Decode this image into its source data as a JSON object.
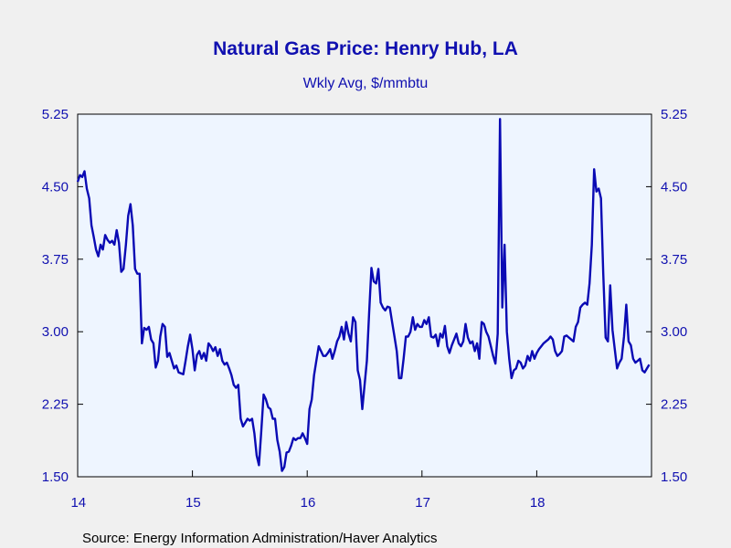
{
  "chart_data": {
    "type": "line",
    "title": "Natural Gas Price: Henry Hub, LA",
    "subtitle": "Wkly Avg, $/mmbtu",
    "source": "Source:  Energy Information Administration/Haver Analytics",
    "y_ticks": [
      "5.25",
      "4.50",
      "3.75",
      "3.00",
      "2.25",
      "1.50"
    ],
    "y_tick_values": [
      5.25,
      4.5,
      3.75,
      3.0,
      2.25,
      1.5
    ],
    "ylim": [
      1.5,
      5.25
    ],
    "x_tick_labels": [
      "14",
      "15",
      "16",
      "17",
      "18"
    ],
    "xlim": [
      2014.0,
      2019.0
    ],
    "grid": false,
    "colors": {
      "line": "#0a0ab4",
      "text": "#1010b0",
      "plot_bg": "#eef5ff",
      "page_bg": "#f0f0f0"
    },
    "series": [
      {
        "x": [
          2014.0,
          2014.02,
          2014.04,
          2014.06,
          2014.08,
          2014.1,
          2014.12,
          2014.14,
          2014.16,
          2014.18,
          2014.2,
          2014.22,
          2014.24,
          2014.26,
          2014.28,
          2014.3,
          2014.32,
          2014.34,
          2014.36,
          2014.38,
          2014.4,
          2014.42,
          2014.44,
          2014.46,
          2014.48,
          2014.5,
          2014.52,
          2014.54,
          2014.56,
          2014.58,
          2014.6,
          2014.62,
          2014.64,
          2014.66,
          2014.68,
          2014.7,
          2014.72,
          2014.74,
          2014.76,
          2014.78,
          2014.8,
          2014.82,
          2014.84,
          2014.86,
          2014.88,
          2014.9,
          2014.92,
          2014.94,
          2014.96,
          2014.98,
          2015.0,
          2015.02,
          2015.04,
          2015.06,
          2015.08,
          2015.1,
          2015.12,
          2015.14,
          2015.16,
          2015.18,
          2015.2,
          2015.22,
          2015.24,
          2015.26,
          2015.28,
          2015.3,
          2015.32,
          2015.34,
          2015.36,
          2015.38,
          2015.4,
          2015.42,
          2015.44,
          2015.46,
          2015.48,
          2015.5,
          2015.52,
          2015.54,
          2015.56,
          2015.58,
          2015.6,
          2015.62,
          2015.64,
          2015.66,
          2015.68,
          2015.7,
          2015.72,
          2015.74,
          2015.76,
          2015.78,
          2015.8,
          2015.82,
          2015.84,
          2015.86,
          2015.88,
          2015.9,
          2015.92,
          2015.94,
          2015.96,
          2015.98,
          2016.0,
          2016.02,
          2016.04,
          2016.06,
          2016.08,
          2016.1,
          2016.12,
          2016.14,
          2016.16,
          2016.18,
          2016.2,
          2016.22,
          2016.24,
          2016.26,
          2016.28,
          2016.3,
          2016.32,
          2016.34,
          2016.36,
          2016.38,
          2016.4,
          2016.42,
          2016.44,
          2016.46,
          2016.48,
          2016.5,
          2016.52,
          2016.54,
          2016.56,
          2016.58,
          2016.6,
          2016.62,
          2016.64,
          2016.66,
          2016.68,
          2016.7,
          2016.72,
          2016.74,
          2016.76,
          2016.78,
          2016.8,
          2016.82,
          2016.84,
          2016.86,
          2016.88,
          2016.9,
          2016.92,
          2016.94,
          2016.96,
          2016.98,
          2017.0,
          2017.02,
          2017.04,
          2017.06,
          2017.08,
          2017.1,
          2017.12,
          2017.14,
          2017.16,
          2017.18,
          2017.2,
          2017.22,
          2017.24,
          2017.26,
          2017.28,
          2017.3,
          2017.32,
          2017.34,
          2017.36,
          2017.38,
          2017.4,
          2017.42,
          2017.44,
          2017.46,
          2017.48,
          2017.5,
          2017.52,
          2017.54,
          2017.56,
          2017.58,
          2017.6,
          2017.62,
          2017.64,
          2017.66,
          2017.68,
          2017.7,
          2017.72,
          2017.74,
          2017.76,
          2017.78,
          2017.8,
          2017.82,
          2017.84,
          2017.86,
          2017.88,
          2017.9,
          2017.92,
          2017.94,
          2017.96,
          2017.98,
          2018.0,
          2018.02,
          2018.04,
          2018.06,
          2018.08,
          2018.1,
          2018.12,
          2018.14,
          2018.16,
          2018.18,
          2018.2,
          2018.22,
          2018.24,
          2018.26,
          2018.28,
          2018.3,
          2018.32,
          2018.34,
          2018.36,
          2018.38,
          2018.4,
          2018.42,
          2018.44,
          2018.46,
          2018.48,
          2018.5,
          2018.52,
          2018.54,
          2018.56,
          2018.58,
          2018.6,
          2018.62,
          2018.64,
          2018.66,
          2018.68,
          2018.7,
          2018.72,
          2018.74,
          2018.76,
          2018.78,
          2018.8,
          2018.82,
          2018.84,
          2018.86,
          2018.88,
          2018.9,
          2018.92,
          2018.94,
          2018.96,
          2018.98
        ],
        "values": [
          4.55,
          4.62,
          4.6,
          4.66,
          4.48,
          4.38,
          4.1,
          3.98,
          3.85,
          3.78,
          3.9,
          3.85,
          4.0,
          3.95,
          3.92,
          3.94,
          3.9,
          4.05,
          3.92,
          3.62,
          3.65,
          3.9,
          4.2,
          4.32,
          4.1,
          3.65,
          3.6,
          3.6,
          2.88,
          3.04,
          3.02,
          3.05,
          2.92,
          2.88,
          2.63,
          2.7,
          2.95,
          3.08,
          3.05,
          2.74,
          2.78,
          2.7,
          2.62,
          2.65,
          2.58,
          2.57,
          2.56,
          2.7,
          2.85,
          2.97,
          2.82,
          2.6,
          2.76,
          2.8,
          2.72,
          2.78,
          2.7,
          2.88,
          2.85,
          2.8,
          2.84,
          2.75,
          2.82,
          2.7,
          2.66,
          2.68,
          2.62,
          2.55,
          2.45,
          2.42,
          2.45,
          2.1,
          2.02,
          2.06,
          2.1,
          2.08,
          2.1,
          1.95,
          1.72,
          1.62,
          1.98,
          2.35,
          2.3,
          2.22,
          2.2,
          2.1,
          2.1,
          1.88,
          1.76,
          1.56,
          1.6,
          1.75,
          1.76,
          1.82,
          1.9,
          1.88,
          1.9,
          1.9,
          1.95,
          1.9,
          1.84,
          2.2,
          2.3,
          2.55,
          2.7,
          2.85,
          2.8,
          2.75,
          2.75,
          2.78,
          2.82,
          2.72,
          2.8,
          2.9,
          2.95,
          3.05,
          2.92,
          3.1,
          2.98,
          2.9,
          3.15,
          3.1,
          2.6,
          2.5,
          2.2,
          2.45,
          2.7,
          3.2,
          3.66,
          3.52,
          3.5,
          3.65,
          3.3,
          3.25,
          3.22,
          3.26,
          3.25,
          3.1,
          2.95,
          2.8,
          2.52,
          2.52,
          2.72,
          2.95,
          2.95,
          3.0,
          3.15,
          3.02,
          3.08,
          3.05,
          3.05,
          3.12,
          3.08,
          3.15,
          2.95,
          2.94,
          2.97,
          2.85,
          2.98,
          2.94,
          3.06,
          2.85,
          2.78,
          2.86,
          2.92,
          2.98,
          2.88,
          2.85,
          2.9,
          3.08,
          2.94,
          2.88,
          2.9,
          2.8,
          2.88,
          2.72,
          3.1,
          3.08,
          3.0,
          2.95,
          2.85,
          2.75,
          2.67,
          2.98,
          5.2,
          3.25,
          3.9,
          3.0,
          2.72,
          2.52,
          2.6,
          2.62,
          2.7,
          2.68,
          2.62,
          2.65,
          2.75,
          2.7,
          2.8,
          2.72,
          2.78,
          2.82,
          2.85,
          2.88,
          2.9,
          2.92,
          2.95,
          2.92,
          2.8,
          2.75,
          2.77,
          2.8,
          2.95,
          2.96,
          2.94,
          2.92,
          2.9,
          3.05,
          3.1,
          3.25,
          3.28,
          3.3,
          3.28,
          3.5,
          3.9,
          4.68,
          4.45,
          4.48,
          4.38,
          3.6,
          2.94,
          2.9,
          3.48,
          3.02,
          2.82,
          2.62,
          2.68,
          2.72,
          2.95,
          3.28,
          2.9,
          2.86,
          2.72,
          2.68,
          2.7,
          2.72,
          2.6,
          2.58,
          2.62,
          2.66
        ]
      }
    ]
  }
}
